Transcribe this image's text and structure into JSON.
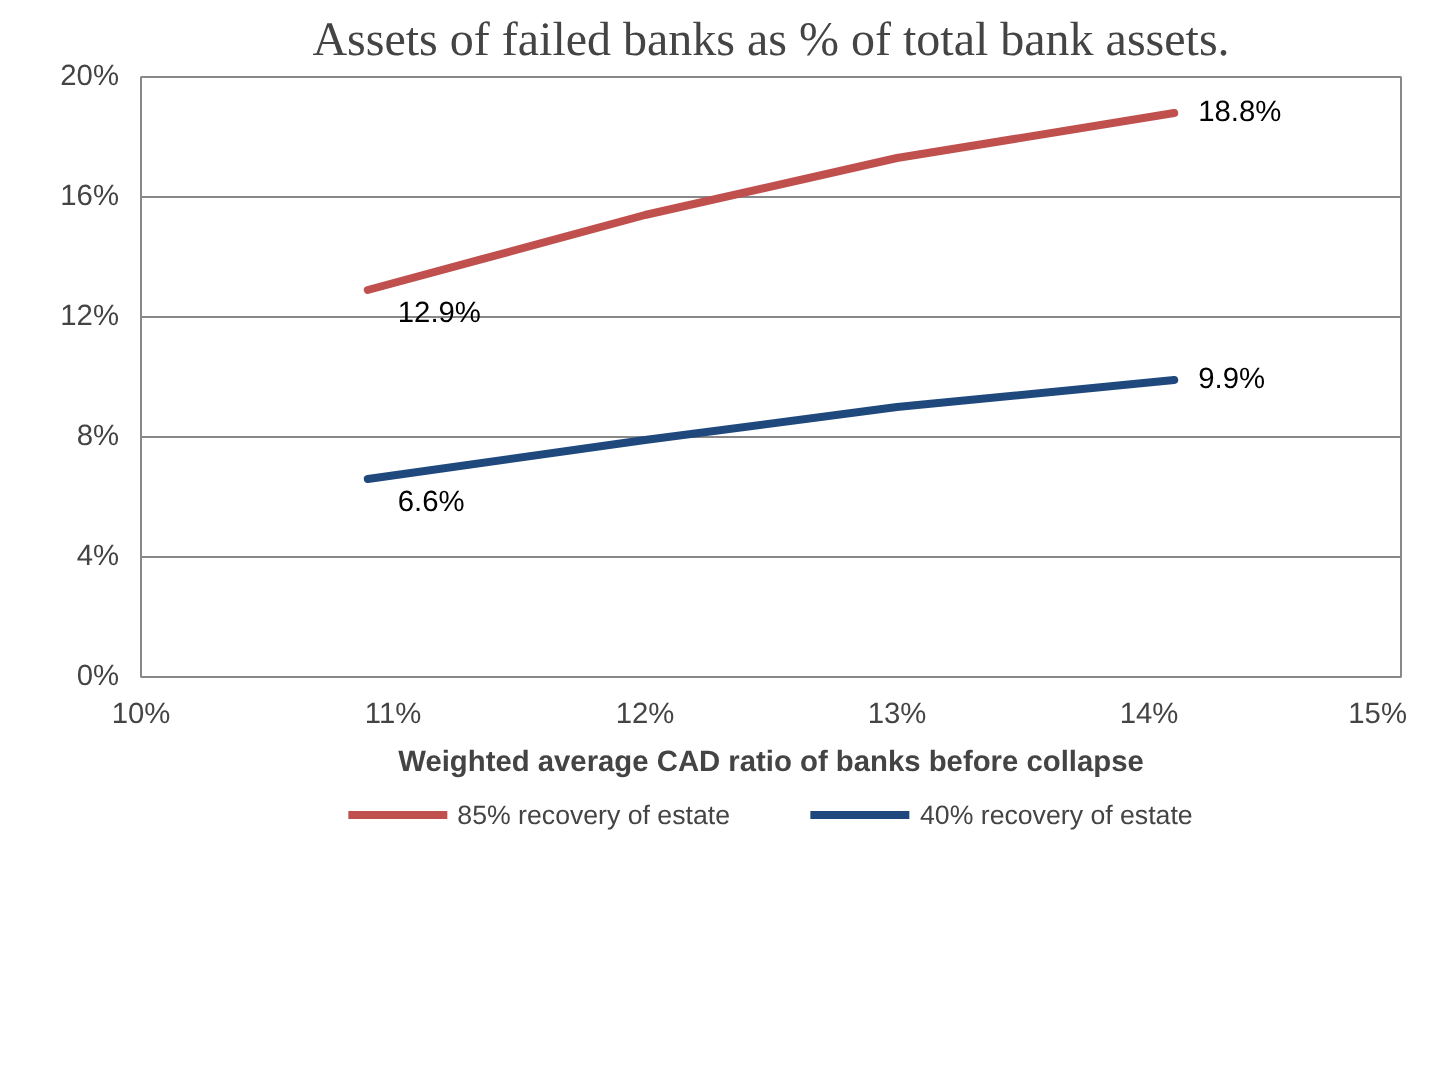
{
  "chart_data": {
    "type": "line",
    "title": "Assets of failed banks as % of total bank assets.",
    "xlabel": "Weighted average CAD ratio of banks before collapse",
    "x": [
      10.9,
      12.0,
      13.0,
      14.1
    ],
    "series": [
      {
        "name": "85% recovery of estate",
        "color": "#c0504d",
        "values": [
          12.9,
          15.4,
          17.3,
          18.8
        ],
        "value_labels": [
          "12.9%",
          null,
          null,
          "18.8%"
        ]
      },
      {
        "name": "40% recovery of estate",
        "color": "#1f497d",
        "values": [
          6.6,
          7.9,
          9.0,
          9.9
        ],
        "value_labels": [
          "6.6%",
          null,
          null,
          "9.9%"
        ]
      }
    ],
    "xlim": [
      10,
      15
    ],
    "xticks": [
      {
        "value": 10,
        "label": "10%"
      },
      {
        "value": 11,
        "label": "11%"
      },
      {
        "value": 12,
        "label": "12%"
      },
      {
        "value": 13,
        "label": "13%"
      },
      {
        "value": 14,
        "label": "14%"
      },
      {
        "value": 15,
        "label": "15%"
      }
    ],
    "ylim": [
      0,
      20
    ],
    "yticks": [
      {
        "value": 0,
        "label": "0%"
      },
      {
        "value": 4,
        "label": "4%"
      },
      {
        "value": 8,
        "label": "8%"
      },
      {
        "value": 12,
        "label": "12%"
      },
      {
        "value": 16,
        "label": "16%"
      },
      {
        "value": 20,
        "label": "20%"
      }
    ],
    "grid": "y",
    "legend": "bottom",
    "marker": "none",
    "line_style": "solid"
  }
}
